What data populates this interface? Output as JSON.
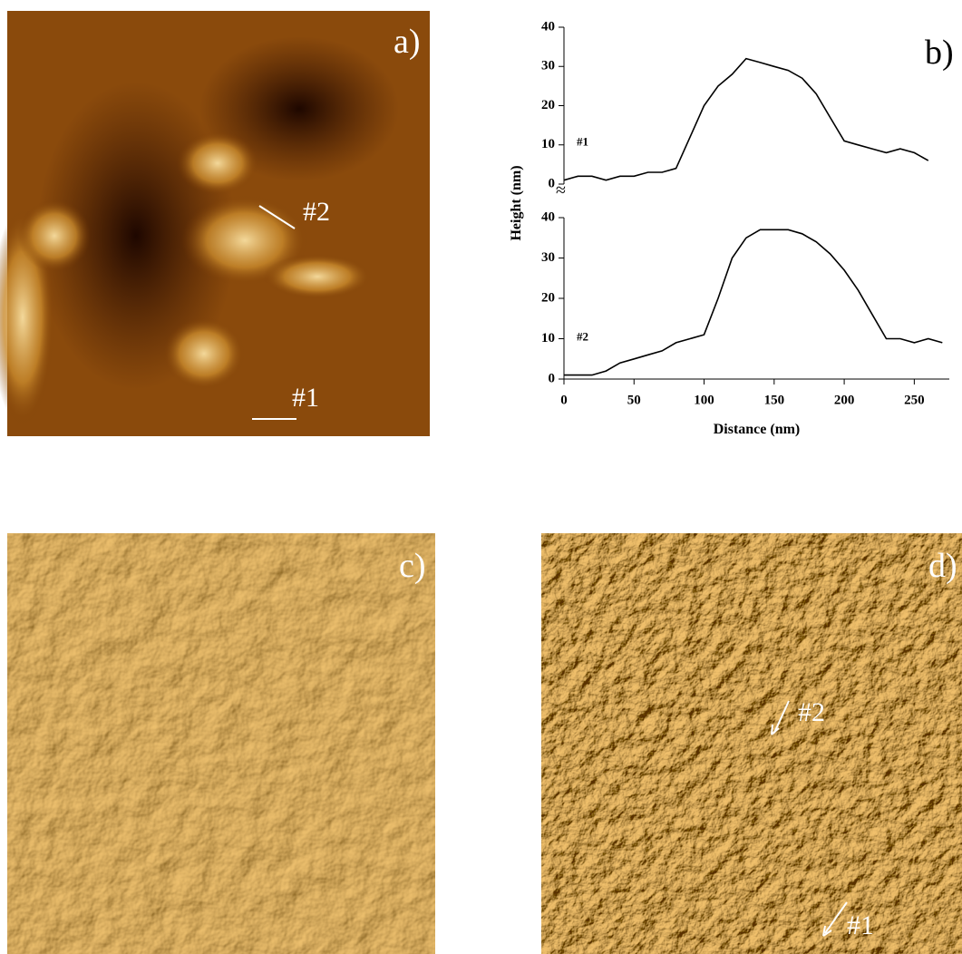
{
  "panels": {
    "a": {
      "label": "a)",
      "annotations": [
        "#2",
        "#1"
      ]
    },
    "b": {
      "label": "b)"
    },
    "c": {
      "label": "c)"
    },
    "d": {
      "label": "d)",
      "annotations": [
        "#2",
        "#1"
      ]
    }
  },
  "chart_data": [
    {
      "type": "line",
      "ylabel": "Height (nm)",
      "x": [
        0,
        10,
        20,
        30,
        40,
        50,
        60,
        70,
        80,
        90,
        100,
        110,
        120,
        130,
        140,
        150,
        160,
        170,
        180,
        190,
        200,
        210,
        220,
        230,
        240,
        250,
        260
      ],
      "series": [
        {
          "name": "#1",
          "color": "#000000",
          "values": [
            1,
            2,
            2,
            1,
            2,
            2,
            3,
            3,
            4,
            12,
            20,
            25,
            28,
            32,
            31,
            30,
            29,
            27,
            23,
            17,
            11,
            10,
            9,
            8,
            9,
            8,
            6
          ]
        }
      ],
      "xlim": [
        0,
        275
      ],
      "ylim": [
        0,
        40
      ],
      "yticks": [
        0,
        10,
        20,
        30,
        40
      ]
    },
    {
      "type": "line",
      "xlabel": "Distance (nm)",
      "x": [
        0,
        10,
        20,
        30,
        40,
        50,
        60,
        70,
        80,
        90,
        100,
        110,
        120,
        130,
        140,
        150,
        160,
        170,
        180,
        190,
        200,
        210,
        220,
        230,
        240,
        250,
        260,
        270
      ],
      "series": [
        {
          "name": "#2",
          "color": "#000000",
          "values": [
            1,
            1,
            1,
            2,
            4,
            5,
            6,
            7,
            9,
            10,
            11,
            20,
            30,
            35,
            37,
            37,
            37,
            36,
            34,
            31,
            27,
            22,
            16,
            10,
            10,
            9,
            10,
            9
          ]
        }
      ],
      "xlim": [
        0,
        275
      ],
      "ylim": [
        0,
        40
      ],
      "xticks": [
        0,
        50,
        100,
        150,
        200,
        250
      ],
      "yticks": [
        0,
        10,
        20,
        30,
        40
      ]
    }
  ]
}
